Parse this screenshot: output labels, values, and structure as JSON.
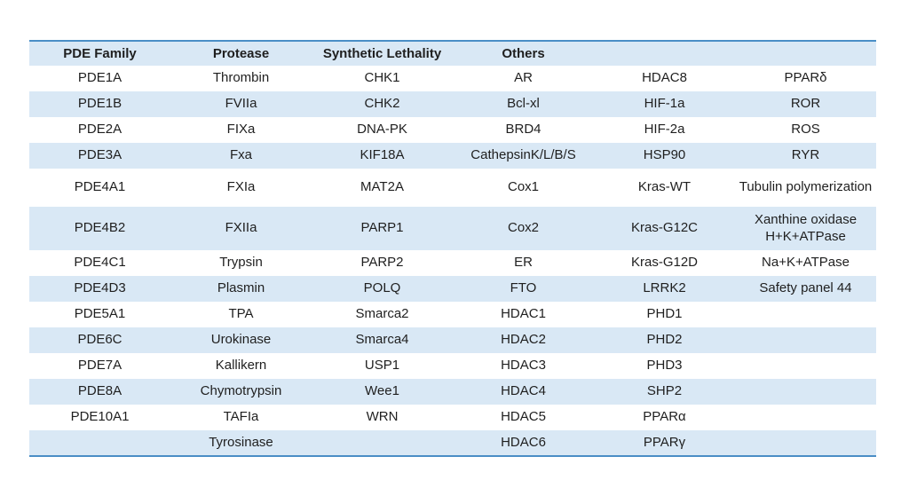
{
  "colors": {
    "stripe_blue": "#d9e8f5",
    "border_blue": "#4a8ec6",
    "text": "#1f1f1f",
    "background": "#ffffff"
  },
  "chart_data": {
    "type": "table",
    "title": "",
    "columns": [
      "PDE Family",
      "Protease",
      "Synthetic Lethality",
      "Others",
      "",
      ""
    ],
    "rows": [
      [
        "PDE1A",
        "Thrombin",
        "CHK1",
        "AR",
        "HDAC8",
        "PPARδ"
      ],
      [
        "PDE1B",
        "FVIIa",
        "CHK2",
        "Bcl-xl",
        "HIF-1a",
        "ROR"
      ],
      [
        "PDE2A",
        "FIXa",
        "DNA-PK",
        "BRD4",
        "HIF-2a",
        "ROS"
      ],
      [
        "PDE3A",
        "Fxa",
        "KIF18A",
        "CathepsinK/L/B/S",
        "HSP90",
        "RYR"
      ],
      [
        "PDE4A1",
        "FXIa",
        "MAT2A",
        "Cox1",
        "Kras-WT",
        "Tubulin polymerization"
      ],
      [
        "PDE4B2",
        "FXIIa",
        "PARP1",
        "Cox2",
        "Kras-G12C",
        "Xanthine oxidase\nH+K+ATPase"
      ],
      [
        "PDE4C1",
        "Trypsin",
        "PARP2",
        "ER",
        "Kras-G12D",
        "Na+K+ATPase"
      ],
      [
        "PDE4D3",
        "Plasmin",
        "POLQ",
        "FTO",
        "LRRK2",
        "Safety panel 44"
      ],
      [
        "PDE5A1",
        "TPA",
        "Smarca2",
        "HDAC1",
        "PHD1",
        ""
      ],
      [
        "PDE6C",
        "Urokinase",
        "Smarca4",
        "HDAC2",
        "PHD2",
        ""
      ],
      [
        "PDE7A",
        "Kallikern",
        "USP1",
        "HDAC3",
        "PHD3",
        ""
      ],
      [
        "PDE8A",
        "Chymotrypsin",
        "Wee1",
        "HDAC4",
        "SHP2",
        ""
      ],
      [
        "PDE10A1",
        "TAFIa",
        "WRN",
        "HDAC5",
        "PPARα",
        ""
      ],
      [
        "",
        "Tyrosinase",
        "",
        "HDAC6",
        "PPARγ",
        ""
      ]
    ],
    "layout": {
      "striped": "alternating white and light-blue rows, header row light-blue",
      "top_bottom_rule": "medium blue horizontal rule above header and below last row",
      "tall_row_indices": [
        4,
        5
      ]
    }
  }
}
